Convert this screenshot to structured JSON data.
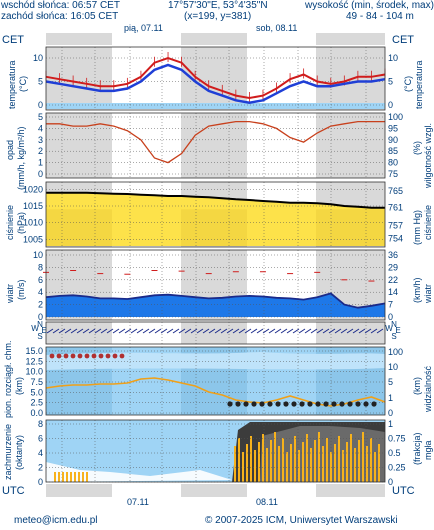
{
  "header": {
    "sunrise": "wschód słońca: 06:57 CET",
    "sunset": "zachód słońca: 16:05 CET",
    "coords": "17°57'30\"E, 53°4'35\"N",
    "grid": "(x=199, y=381)",
    "altitude_label": "wysokość (min, środek, max)",
    "altitude_values": "49 - 84 - 104 m"
  },
  "top_axis": {
    "tz_left": "CET",
    "tz_right": "CET",
    "hours": [
      "22",
      "04",
      "10",
      "16",
      "22",
      "04",
      "10",
      "16",
      "22",
      "04"
    ],
    "day1": "pią, 07.11",
    "day2": "sob, 08.11"
  },
  "bottom_axis": {
    "tz_left": "UTC",
    "tz_right": "UTC",
    "hours": [
      "21",
      "03",
      "09",
      "15",
      "21",
      "03",
      "09",
      "15",
      "21",
      "03"
    ],
    "day1": "07.11",
    "day2": "08.11"
  },
  "panels": {
    "temp": {
      "label_left": "temperatura",
      "unit_left": "(°C)",
      "label_right": "temperatura",
      "unit_right": "(°C)",
      "ticks": [
        "10",
        "5",
        "0"
      ]
    },
    "precip": {
      "label_left": "opad",
      "unit_left": "(mm/h, kg/m²/h)",
      "label_right": "wilgotność wzgl.",
      "unit_right": "(%)",
      "ticks_left": [
        "5",
        "4",
        "3",
        "2",
        "1",
        "0"
      ],
      "ticks_right": [
        "100",
        "95",
        "90",
        "85",
        "80",
        "75"
      ]
    },
    "pressure": {
      "label_left": "ciśnienie",
      "unit_left": "(hPa)",
      "label_right": "ciśnienie",
      "unit_right": "(mm Hg)",
      "ticks_left": [
        "1020",
        "1015",
        "1010",
        "1005"
      ],
      "ticks_right": [
        "765",
        "761",
        "757",
        "754"
      ]
    },
    "wind": {
      "label_left": "wiatr",
      "unit_left": "(m/s)",
      "label_right": "wiatr",
      "unit_right": "(km/h)",
      "ticks_left": [
        "10",
        "8",
        "6",
        "4",
        "2",
        "0"
      ],
      "ticks_right": [
        "36",
        "29",
        "22",
        "14",
        "7",
        "0"
      ]
    },
    "winddir": {
      "letters_left": [
        "W",
        "N",
        "S",
        "E"
      ],
      "letters_right": [
        "W",
        "N",
        "S",
        "E"
      ]
    },
    "visibility": {
      "label_left": "pion. rozciągł. chm.",
      "unit_left": "(km)",
      "label_right": "widzialność",
      "unit_right": "(km)",
      "ticks_left": [
        "15.0",
        "12.5",
        "10.0",
        "7.5",
        "5.0",
        "2.5",
        "0.0"
      ],
      "ticks_right": [
        "100",
        "10",
        "5",
        "1",
        "0"
      ]
    },
    "clouds": {
      "label_left": "zachmurzenie",
      "unit_left": "(oktanty)",
      "label_right": "mgła",
      "unit_right": "(frakcja)",
      "ticks_left": [
        "8",
        "6",
        "4",
        "2",
        "0"
      ],
      "ticks_right": [
        "1",
        "0.75",
        "0.5",
        "0.25",
        "0"
      ]
    }
  },
  "footer": {
    "email": "meteo@icm.edu.pl",
    "copyright": "© 2007-2025 ICM, Uniwersytet Warszawski"
  },
  "colors": {
    "text": "#003d7a",
    "night": "#d9d9d9",
    "sky": "#9fd4f5",
    "pressure_fill": "#fde24a",
    "red": "#d01c1c",
    "blue": "#1f3fd6",
    "wind_fill": "#1e78e8",
    "orange": "#f0a018",
    "fog": "#f7b21c",
    "cloud_dark": "#3c3c3c"
  },
  "series": {
    "temperature_max": [
      6,
      5.5,
      5,
      4.5,
      4,
      4,
      4.5,
      6,
      9,
      10,
      9,
      6,
      4,
      3,
      2,
      1.5,
      2,
      3.5,
      5.5,
      6.5,
      5,
      4.5,
      5,
      6,
      6,
      6.5
    ],
    "temperature_mean": [
      5,
      4.5,
      4,
      3.5,
      3,
      3,
      3.5,
      5,
      7.5,
      8.5,
      7.5,
      5,
      3,
      2,
      1,
      0.5,
      1,
      2.5,
      4,
      5,
      4,
      4,
      4.5,
      5,
      5,
      5.5
    ],
    "humidity": [
      97,
      97,
      96,
      96,
      97,
      96,
      94,
      90,
      82,
      80,
      84,
      92,
      96,
      97,
      98,
      98,
      97,
      95,
      91,
      89,
      93,
      96,
      97,
      98,
      98,
      98
    ],
    "pressure": [
      1019,
      1019,
      1019,
      1019,
      1018.8,
      1018.7,
      1018.6,
      1018.4,
      1018.2,
      1018,
      1018,
      1017.8,
      1017.6,
      1017.3,
      1017,
      1016.8,
      1016.5,
      1016.3,
      1016,
      1016,
      1015.8,
      1015.5,
      1015,
      1014.8,
      1014.5,
      1014.5
    ],
    "wind": [
      3.2,
      3.4,
      3.5,
      3.3,
      3,
      3,
      2.9,
      3.2,
      3.5,
      3.6,
      3.4,
      3.2,
      3,
      3.1,
      3.3,
      3.4,
      3.3,
      3.1,
      3,
      2.8,
      3.2,
      3.8,
      2,
      1.5,
      1.8,
      2.2
    ]
  }
}
